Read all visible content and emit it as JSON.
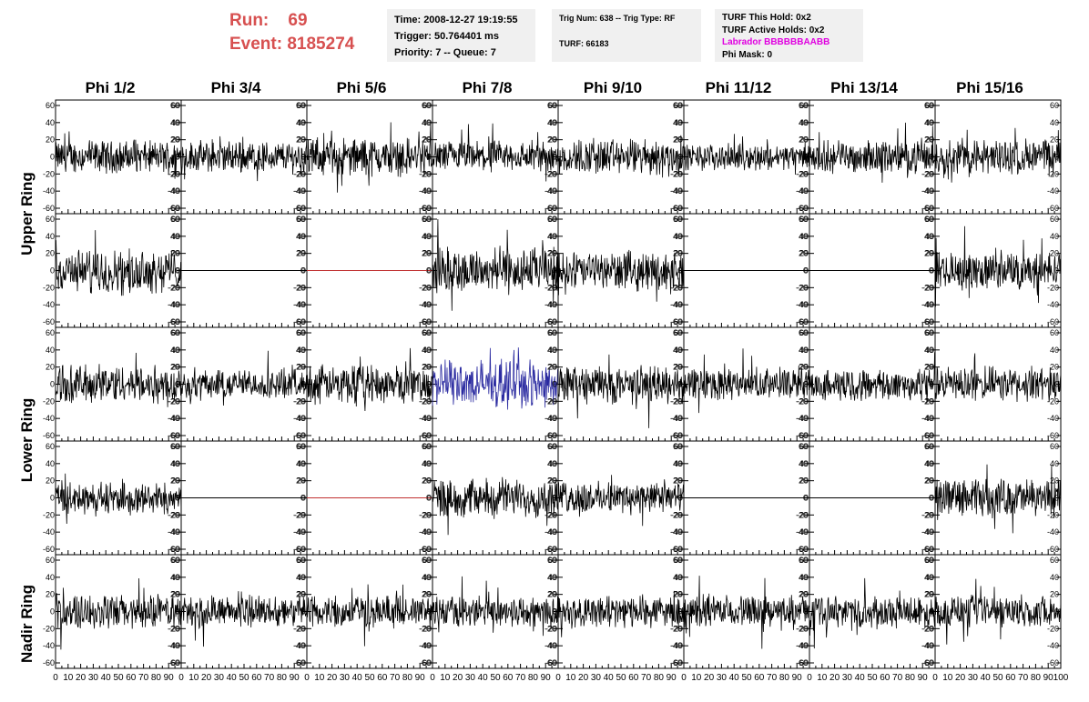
{
  "run": {
    "run_label": "Run:",
    "run_value": "69",
    "event_label": "Event:",
    "event_value": "8185274"
  },
  "time_box": {
    "time": "Time: 2008-12-27 19:19:55",
    "trigger": "Trigger: 50.764401 ms",
    "priority": "Priority: 7 -- Queue: 7"
  },
  "trig_box": {
    "trig": "Trig Num: 638 -- Trig Type: RF",
    "turf": "TURF: 66183"
  },
  "turf_box": {
    "this_hold": "TURF This Hold: 0x2",
    "active_holds": "TURF Active Holds: 0x2",
    "labrador": "Labrador BBBBBBAABB",
    "phi_mask": "Phi Mask: 0"
  },
  "colors": {
    "run_text": "#d75050",
    "trace": "#000000",
    "highlight_trace": "#2a2aa0",
    "empty_trace": "#c03030",
    "magenta": "#e000e0"
  },
  "chart_data": {
    "type": "line",
    "columns": [
      "Phi 1/2",
      "Phi 3/4",
      "Phi 5/6",
      "Phi 7/8",
      "Phi 9/10",
      "Phi 11/12",
      "Phi 13/14",
      "Phi 15/16"
    ],
    "rings": [
      "Upper Ring",
      "Lower Ring",
      "Nadir Ring"
    ],
    "rows": [
      "upper-1",
      "upper-2",
      "lower-1",
      "lower-2",
      "nadir"
    ],
    "ylim": [
      -60,
      60
    ],
    "xlim": [
      0,
      100
    ],
    "y_ticks": [
      -60,
      -40,
      -20,
      0,
      20,
      40,
      60
    ],
    "x_ticks": [
      0,
      10,
      20,
      30,
      40,
      50,
      60,
      70,
      80,
      90,
      100
    ],
    "x_tick_labels": [
      "0",
      "10",
      "20",
      "30",
      "40",
      "50",
      "60",
      "70",
      "80",
      "90",
      "100"
    ],
    "flat_panels": [
      [
        1,
        1
      ],
      [
        1,
        2
      ],
      [
        1,
        5
      ],
      [
        1,
        6
      ],
      [
        3,
        1
      ],
      [
        3,
        2
      ],
      [
        3,
        5
      ],
      [
        3,
        6
      ]
    ],
    "red_flat_panels": [
      [
        1,
        2
      ],
      [
        3,
        2
      ]
    ],
    "highlight_panel": [
      2,
      3
    ],
    "amplitude": [
      [
        15,
        15,
        18,
        15,
        17,
        12,
        15,
        17
      ],
      [
        20,
        0,
        0,
        22,
        18,
        0,
        0,
        18
      ],
      [
        18,
        14,
        18,
        22,
        18,
        15,
        15,
        16
      ],
      [
        15,
        0,
        0,
        18,
        15,
        0,
        0,
        18
      ],
      [
        16,
        15,
        15,
        15,
        15,
        15,
        15,
        15
      ]
    ]
  }
}
